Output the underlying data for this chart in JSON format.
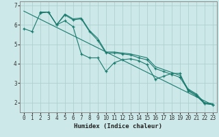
{
  "xlabel": "Humidex (Indice chaleur)",
  "bg_color": "#cce8e8",
  "line_color": "#1a7a6e",
  "grid_color": "#aacccc",
  "xlim": [
    -0.5,
    23.5
  ],
  "ylim": [
    1.5,
    7.2
  ],
  "xticks": [
    0,
    1,
    2,
    3,
    4,
    5,
    6,
    7,
    8,
    9,
    10,
    11,
    12,
    13,
    14,
    15,
    16,
    17,
    18,
    19,
    20,
    21,
    22,
    23
  ],
  "yticks": [
    2,
    3,
    4,
    5,
    6,
    7
  ],
  "series": [
    {
      "x": [
        0,
        1,
        2,
        3,
        4,
        5,
        6,
        7,
        8,
        9,
        10,
        11,
        12,
        13,
        14,
        15,
        16,
        17,
        18,
        19,
        20,
        21,
        22,
        23
      ],
      "y": [
        5.8,
        5.65,
        6.6,
        6.65,
        6.0,
        6.2,
        5.9,
        4.5,
        4.3,
        4.3,
        3.6,
        4.05,
        4.2,
        4.25,
        4.15,
        3.95,
        3.2,
        3.35,
        3.5,
        3.5,
        2.6,
        2.35,
        1.95,
        1.9
      ],
      "marker": true
    },
    {
      "x": [
        2,
        3,
        4,
        5,
        6,
        7,
        8,
        9,
        10,
        11,
        12,
        13,
        14,
        15,
        16,
        17,
        18,
        19,
        20,
        21,
        22,
        23
      ],
      "y": [
        6.65,
        6.65,
        6.0,
        6.5,
        6.25,
        6.3,
        5.65,
        5.2,
        4.55,
        4.55,
        4.5,
        4.45,
        4.3,
        4.2,
        3.75,
        3.6,
        3.45,
        3.3,
        2.65,
        2.4,
        1.95,
        1.9
      ],
      "marker": true
    },
    {
      "x": [
        2,
        3,
        4,
        5,
        6,
        7,
        8,
        9,
        10,
        11,
        12,
        13,
        14,
        15,
        16,
        17,
        18,
        19,
        20,
        21,
        22,
        23
      ],
      "y": [
        6.65,
        6.65,
        6.0,
        6.55,
        6.3,
        6.35,
        5.7,
        5.3,
        4.6,
        4.6,
        4.55,
        4.5,
        4.4,
        4.3,
        3.85,
        3.7,
        3.55,
        3.4,
        2.7,
        2.45,
        2.0,
        1.95
      ],
      "marker": false
    },
    {
      "x": [
        0,
        23
      ],
      "y": [
        6.7,
        1.88
      ],
      "marker": false,
      "straight": true
    }
  ]
}
